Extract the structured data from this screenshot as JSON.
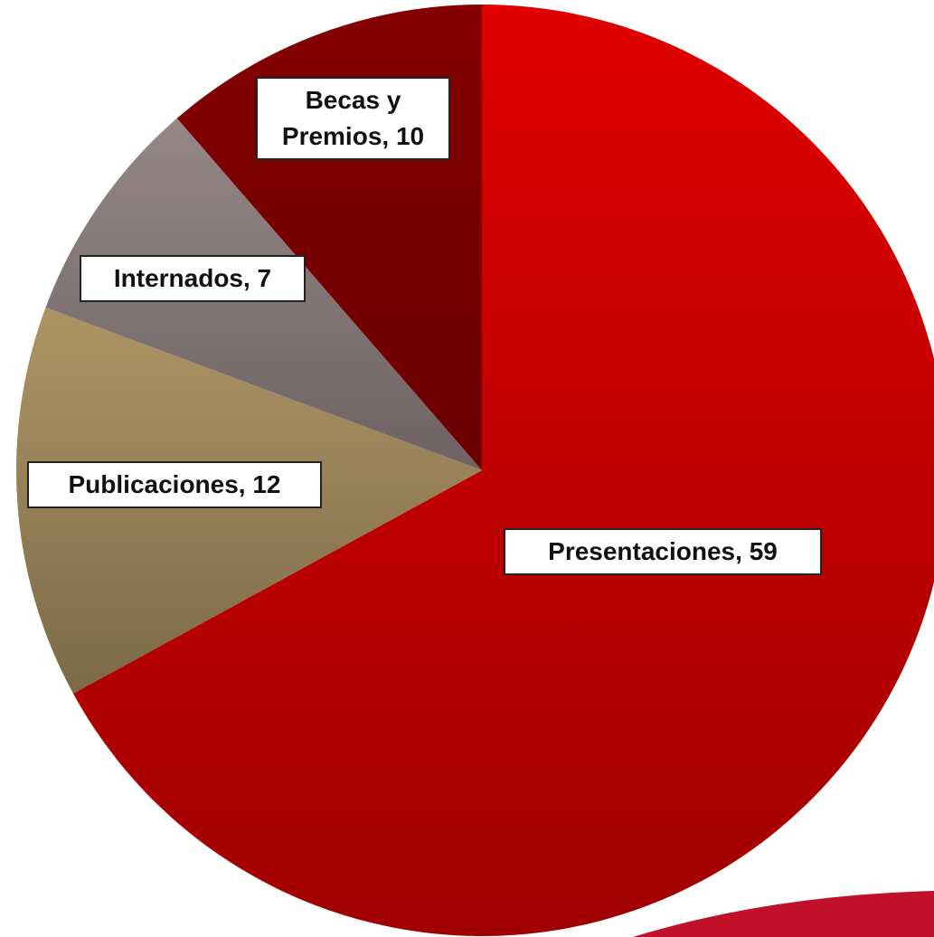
{
  "chart_data": {
    "type": "pie",
    "categories": [
      "Presentaciones",
      "Publicaciones",
      "Internados",
      "Becas y Premios"
    ],
    "values": [
      59,
      12,
      7,
      10
    ],
    "value_labels": [
      "Presentaciones, 59",
      "Publicaciones, 12",
      "Internados, 7",
      "Becas y Premios, 10"
    ],
    "colors": [
      "#c80000",
      "#a08a5c",
      "#857879",
      "#780000"
    ]
  }
}
